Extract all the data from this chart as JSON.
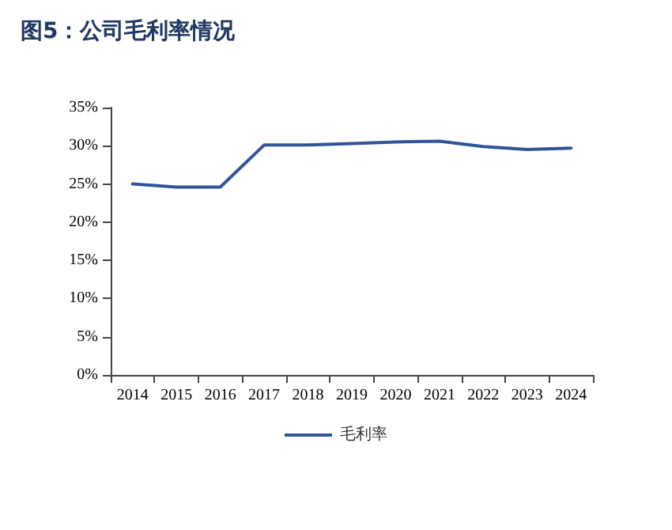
{
  "chart_data": {
    "type": "line",
    "title": "图5：公司毛利率情况",
    "categories": [
      "2014",
      "2015",
      "2016",
      "2017",
      "2018",
      "2019",
      "2020",
      "2021",
      "2022",
      "2023",
      "2024"
    ],
    "series": [
      {
        "name": "毛利率",
        "color": "#2f5597",
        "values": [
          25.0,
          24.6,
          24.6,
          30.1,
          30.1,
          30.3,
          30.5,
          30.6,
          29.9,
          29.5,
          29.7
        ]
      }
    ],
    "ylim": [
      0,
      35
    ],
    "yticks": [
      {
        "value": 0,
        "label": "0%"
      },
      {
        "value": 5,
        "label": "5%"
      },
      {
        "value": 10,
        "label": "10%"
      },
      {
        "value": 15,
        "label": "15%"
      },
      {
        "value": 20,
        "label": "20%"
      },
      {
        "value": 25,
        "label": "25%"
      },
      {
        "value": 30,
        "label": "30%"
      },
      {
        "value": 35,
        "label": "35%"
      }
    ],
    "grid": false,
    "legend": "bottom",
    "marker": "none",
    "line_style": "solid"
  }
}
